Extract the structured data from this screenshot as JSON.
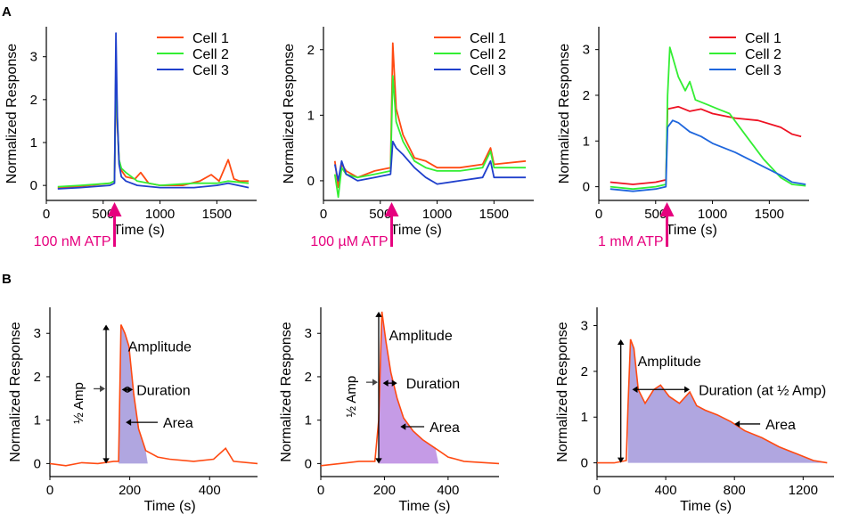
{
  "colors": {
    "red": "#ff4a12",
    "green": "#33ee33",
    "blue": "#2040cc",
    "pink": "#e6007e",
    "fill_b": "#b0a6e0",
    "fill_b2": "#c59be6",
    "axis": "#000000"
  },
  "panel_labels": {
    "a": "A",
    "b": "B"
  },
  "chart_data": [
    {
      "id": "A1",
      "type": "line",
      "panel": "A",
      "title": "",
      "xlabel": "Time (s)",
      "ylabel": "Normalized Response",
      "xlim": [
        0,
        1850
      ],
      "ylim": [
        -0.35,
        3.7
      ],
      "xticks": [
        0,
        500,
        1000,
        1500
      ],
      "yticks": [
        0,
        1,
        2,
        3
      ],
      "xtick_labels": [
        "0",
        "500",
        "1000",
        "1500"
      ],
      "ytick_labels": [
        "0",
        "1",
        "2",
        "3"
      ],
      "stimulus": {
        "label": "100 nM ATP",
        "x": 600
      },
      "legend": {
        "position": "top-right",
        "entries": [
          "Cell 1",
          "Cell 2",
          "Cell 3"
        ]
      },
      "series": [
        {
          "name": "Cell 1",
          "color": "#ff4a12",
          "points": [
            [
              100,
              -0.05
            ],
            [
              300,
              -0.02
            ],
            [
              560,
              0.05
            ],
            [
              600,
              0.1
            ],
            [
              612,
              2.7
            ],
            [
              625,
              1.4
            ],
            [
              640,
              0.6
            ],
            [
              660,
              0.35
            ],
            [
              700,
              0.2
            ],
            [
              780,
              0.15
            ],
            [
              830,
              0.3
            ],
            [
              900,
              0.05
            ],
            [
              1000,
              0
            ],
            [
              1200,
              0
            ],
            [
              1350,
              0.1
            ],
            [
              1450,
              0.25
            ],
            [
              1520,
              0.1
            ],
            [
              1600,
              0.6
            ],
            [
              1650,
              0.15
            ],
            [
              1700,
              0.1
            ],
            [
              1780,
              0.1
            ]
          ]
        },
        {
          "name": "Cell 2",
          "color": "#33ee33",
          "points": [
            [
              100,
              -0.03
            ],
            [
              300,
              0
            ],
            [
              560,
              0.05
            ],
            [
              600,
              0.1
            ],
            [
              612,
              2.9
            ],
            [
              625,
              1.5
            ],
            [
              640,
              0.6
            ],
            [
              660,
              0.4
            ],
            [
              700,
              0.3
            ],
            [
              800,
              0.1
            ],
            [
              1000,
              0
            ],
            [
              1300,
              0.05
            ],
            [
              1500,
              0.05
            ],
            [
              1600,
              0.1
            ],
            [
              1780,
              0.05
            ]
          ]
        },
        {
          "name": "Cell 3",
          "color": "#2040cc",
          "points": [
            [
              100,
              -0.08
            ],
            [
              300,
              -0.05
            ],
            [
              560,
              0
            ],
            [
              600,
              0.05
            ],
            [
              612,
              3.55
            ],
            [
              625,
              1.6
            ],
            [
              640,
              0.5
            ],
            [
              660,
              0.2
            ],
            [
              700,
              0.1
            ],
            [
              800,
              0
            ],
            [
              1000,
              -0.05
            ],
            [
              1300,
              -0.05
            ],
            [
              1500,
              0
            ],
            [
              1600,
              0.05
            ],
            [
              1780,
              -0.05
            ]
          ]
        }
      ]
    },
    {
      "id": "A2",
      "type": "line",
      "panel": "A",
      "title": "",
      "xlabel": "Time (s)",
      "ylabel": "Normalized Response",
      "xlim": [
        0,
        1850
      ],
      "ylim": [
        -0.3,
        2.35
      ],
      "xticks": [
        0,
        500,
        1000,
        1500
      ],
      "yticks": [
        0,
        1,
        2
      ],
      "xtick_labels": [
        "0",
        "500",
        "1000",
        "1500"
      ],
      "ytick_labels": [
        "0",
        "1",
        "2"
      ],
      "stimulus": {
        "label": "100 µM ATP",
        "x": 600
      },
      "legend": {
        "position": "top-right",
        "entries": [
          "Cell 1",
          "Cell 2",
          "Cell 3"
        ]
      },
      "series": [
        {
          "name": "Cell 1",
          "color": "#ff4a12",
          "points": [
            [
              100,
              0.3
            ],
            [
              130,
              -0.1
            ],
            [
              160,
              0.25
            ],
            [
              200,
              0.15
            ],
            [
              300,
              0.05
            ],
            [
              450,
              0.15
            ],
            [
              590,
              0.2
            ],
            [
              610,
              2.1
            ],
            [
              640,
              1.1
            ],
            [
              700,
              0.7
            ],
            [
              800,
              0.35
            ],
            [
              900,
              0.3
            ],
            [
              1000,
              0.2
            ],
            [
              1200,
              0.2
            ],
            [
              1400,
              0.25
            ],
            [
              1470,
              0.5
            ],
            [
              1500,
              0.25
            ],
            [
              1780,
              0.3
            ]
          ]
        },
        {
          "name": "Cell 2",
          "color": "#33ee33",
          "points": [
            [
              100,
              0.1
            ],
            [
              130,
              -0.25
            ],
            [
              160,
              0.2
            ],
            [
              200,
              0.1
            ],
            [
              300,
              0.05
            ],
            [
              450,
              0.1
            ],
            [
              590,
              0.15
            ],
            [
              610,
              1.6
            ],
            [
              640,
              0.9
            ],
            [
              700,
              0.6
            ],
            [
              800,
              0.3
            ],
            [
              900,
              0.2
            ],
            [
              1000,
              0.15
            ],
            [
              1200,
              0.15
            ],
            [
              1400,
              0.2
            ],
            [
              1470,
              0.45
            ],
            [
              1500,
              0.2
            ],
            [
              1780,
              0.2
            ]
          ]
        },
        {
          "name": "Cell 3",
          "color": "#2040cc",
          "points": [
            [
              100,
              0.25
            ],
            [
              130,
              0
            ],
            [
              160,
              0.3
            ],
            [
              200,
              0.1
            ],
            [
              300,
              0
            ],
            [
              450,
              0.05
            ],
            [
              590,
              0.1
            ],
            [
              610,
              0.6
            ],
            [
              640,
              0.5
            ],
            [
              700,
              0.4
            ],
            [
              800,
              0.2
            ],
            [
              900,
              0.05
            ],
            [
              1000,
              -0.05
            ],
            [
              1200,
              0
            ],
            [
              1400,
              0.05
            ],
            [
              1470,
              0.3
            ],
            [
              1500,
              0.05
            ],
            [
              1780,
              0.05
            ]
          ]
        }
      ]
    },
    {
      "id": "A3",
      "type": "line",
      "panel": "A",
      "title": "",
      "xlabel": "Time (s)",
      "ylabel": "Normalized Response",
      "xlim": [
        0,
        1850
      ],
      "ylim": [
        -0.3,
        3.5
      ],
      "xticks": [
        0,
        500,
        1000,
        1500
      ],
      "yticks": [
        0,
        1,
        2,
        3
      ],
      "xtick_labels": [
        "0",
        "500",
        "1000",
        "1500"
      ],
      "ytick_labels": [
        "0",
        "1",
        "2",
        "3"
      ],
      "stimulus": {
        "label": "1 mM ATP",
        "x": 600
      },
      "legend": {
        "position": "top-right",
        "entries": [
          "Cell 1",
          "Cell 2",
          "Cell 3"
        ]
      },
      "series": [
        {
          "name": "Cell 1",
          "color": "#ee1122",
          "points": [
            [
              100,
              0.1
            ],
            [
              300,
              0.05
            ],
            [
              500,
              0.1
            ],
            [
              590,
              0.15
            ],
            [
              605,
              1.7
            ],
            [
              700,
              1.75
            ],
            [
              800,
              1.65
            ],
            [
              900,
              1.7
            ],
            [
              1000,
              1.6
            ],
            [
              1200,
              1.5
            ],
            [
              1400,
              1.45
            ],
            [
              1600,
              1.3
            ],
            [
              1700,
              1.15
            ],
            [
              1780,
              1.1
            ]
          ]
        },
        {
          "name": "Cell 2",
          "color": "#33ee33",
          "points": [
            [
              100,
              0
            ],
            [
              300,
              -0.05
            ],
            [
              500,
              0
            ],
            [
              590,
              0.05
            ],
            [
              605,
              2
            ],
            [
              625,
              3.05
            ],
            [
              700,
              2.4
            ],
            [
              760,
              2.1
            ],
            [
              800,
              2.3
            ],
            [
              850,
              1.9
            ],
            [
              950,
              1.8
            ],
            [
              1050,
              1.7
            ],
            [
              1150,
              1.6
            ],
            [
              1300,
              1.1
            ],
            [
              1450,
              0.6
            ],
            [
              1600,
              0.2
            ],
            [
              1700,
              0.05
            ],
            [
              1820,
              0.02
            ]
          ]
        },
        {
          "name": "Cell 3",
          "color": "#1e66dd",
          "points": [
            [
              100,
              -0.05
            ],
            [
              300,
              -0.1
            ],
            [
              500,
              -0.05
            ],
            [
              590,
              0
            ],
            [
              605,
              1.3
            ],
            [
              650,
              1.45
            ],
            [
              700,
              1.4
            ],
            [
              800,
              1.2
            ],
            [
              900,
              1.1
            ],
            [
              1000,
              0.95
            ],
            [
              1200,
              0.75
            ],
            [
              1400,
              0.5
            ],
            [
              1600,
              0.25
            ],
            [
              1700,
              0.1
            ],
            [
              1820,
              0.05
            ]
          ]
        }
      ]
    },
    {
      "id": "B1",
      "type": "area",
      "panel": "B",
      "title": "",
      "xlabel": "Time (s)",
      "ylabel": "Normalized Response",
      "xlim": [
        0,
        520
      ],
      "ylim": [
        -0.3,
        3.6
      ],
      "xticks": [
        0,
        200,
        400
      ],
      "yticks": [
        0,
        1,
        2,
        3
      ],
      "xtick_labels": [
        "0",
        "200",
        "400"
      ],
      "ytick_labels": [
        "0",
        "1",
        "2",
        "3"
      ],
      "annotations": {
        "amplitude": "Amplitude",
        "half_amp": "½ Amp",
        "duration": "Duration",
        "area": "Area"
      },
      "trace": [
        [
          0,
          0
        ],
        [
          40,
          -0.05
        ],
        [
          80,
          0.02
        ],
        [
          120,
          0
        ],
        [
          160,
          0.05
        ],
        [
          172,
          0.05
        ],
        [
          178,
          3.2
        ],
        [
          188,
          3
        ],
        [
          198,
          2.7
        ],
        [
          210,
          1.6
        ],
        [
          222,
          0.8
        ],
        [
          240,
          0.3
        ],
        [
          270,
          0.15
        ],
        [
          300,
          0.1
        ],
        [
          360,
          0.05
        ],
        [
          410,
          0.1
        ],
        [
          440,
          0.35
        ],
        [
          460,
          0.05
        ],
        [
          520,
          0
        ]
      ],
      "fill_range": [
        172,
        245
      ]
    },
    {
      "id": "B2",
      "type": "area",
      "panel": "B",
      "title": "",
      "xlabel": "Time (s)",
      "ylabel": "Normalized Response",
      "xlim": [
        0,
        560
      ],
      "ylim": [
        -0.3,
        3.6
      ],
      "xticks": [
        0,
        200,
        400
      ],
      "yticks": [
        0,
        1,
        2,
        3
      ],
      "xtick_labels": [
        "0",
        "200",
        "400"
      ],
      "ytick_labels": [
        "0",
        "1",
        "2",
        "3"
      ],
      "annotations": {
        "amplitude": "Amplitude",
        "half_amp": "½ Amp",
        "duration": "Duration",
        "area": "Area"
      },
      "trace": [
        [
          0,
          -0.05
        ],
        [
          60,
          0
        ],
        [
          120,
          0.05
        ],
        [
          170,
          0.05
        ],
        [
          182,
          1
        ],
        [
          192,
          3.5
        ],
        [
          205,
          2.8
        ],
        [
          220,
          2.1
        ],
        [
          240,
          1.5
        ],
        [
          260,
          1.05
        ],
        [
          290,
          0.75
        ],
        [
          320,
          0.55
        ],
        [
          360,
          0.35
        ],
        [
          400,
          0.15
        ],
        [
          450,
          0.05
        ],
        [
          560,
          0
        ]
      ],
      "fill_range": [
        182,
        370
      ]
    },
    {
      "id": "B3",
      "type": "area",
      "panel": "B",
      "title": "",
      "xlabel": "Time (s)",
      "ylabel": "Normalized Response",
      "xlim": [
        0,
        1380
      ],
      "ylim": [
        -0.3,
        3.4
      ],
      "xticks": [
        0,
        400,
        800,
        1200
      ],
      "yticks": [
        0,
        1,
        2,
        3
      ],
      "xtick_labels": [
        "0",
        "400",
        "800",
        "1200"
      ],
      "ytick_labels": [
        "0",
        "1",
        "2",
        "3"
      ],
      "annotations": {
        "amplitude": "Amplitude",
        "duration": "Duration (at ½ Amp)",
        "area": "Area"
      },
      "trace": [
        [
          0,
          0
        ],
        [
          100,
          0
        ],
        [
          170,
          0.05
        ],
        [
          180,
          1.2
        ],
        [
          195,
          2.7
        ],
        [
          215,
          2.5
        ],
        [
          240,
          1.6
        ],
        [
          280,
          1.3
        ],
        [
          330,
          1.6
        ],
        [
          370,
          1.7
        ],
        [
          420,
          1.45
        ],
        [
          480,
          1.3
        ],
        [
          540,
          1.55
        ],
        [
          580,
          1.25
        ],
        [
          630,
          1.15
        ],
        [
          700,
          1.05
        ],
        [
          780,
          0.9
        ],
        [
          860,
          0.7
        ],
        [
          960,
          0.55
        ],
        [
          1060,
          0.35
        ],
        [
          1160,
          0.2
        ],
        [
          1260,
          0.05
        ],
        [
          1340,
          0
        ]
      ],
      "fill_range": [
        180,
        1340
      ]
    }
  ]
}
